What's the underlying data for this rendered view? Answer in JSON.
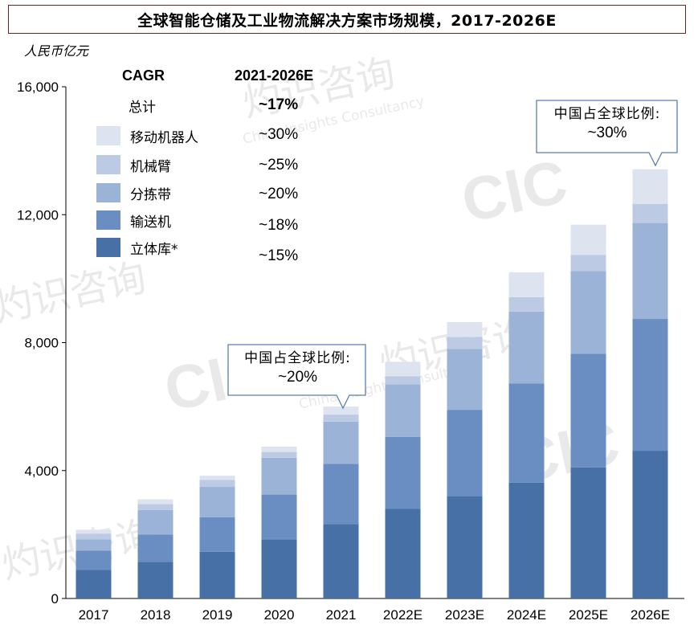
{
  "title": "全球智能仓储及工业物流解决方案市场规模，2017-2026E",
  "y_unit_label": "人民币亿元",
  "legend": {
    "header_left": "CAGR",
    "header_right": "2021-2026E",
    "total_label": "总计",
    "total_cagr": "~17%",
    "items": [
      {
        "name": "移动机器人",
        "cagr": "~30%",
        "color": "#dde3ef"
      },
      {
        "name": "机械臂",
        "cagr": "~25%",
        "color": "#bccbe3"
      },
      {
        "name": "分拣带",
        "cagr": "~20%",
        "color": "#9bb3d6"
      },
      {
        "name": "输送机",
        "cagr": "~18%",
        "color": "#6b8ec2"
      },
      {
        "name": "立体库*",
        "cagr": "~15%",
        "color": "#4670a6"
      }
    ]
  },
  "callouts": [
    {
      "line1": "中国占全球比例:",
      "line2": "~20%"
    },
    {
      "line1": "中国占全球比例:",
      "line2": "~30%"
    }
  ],
  "watermark": {
    "logo": "CIC",
    "cn": "灼识咨询",
    "en": "China Insights Consultancy"
  },
  "chart_data": {
    "type": "bar",
    "stacked": true,
    "categories": [
      "2017",
      "2018",
      "2019",
      "2020",
      "2021",
      "2022E",
      "2023E",
      "2024E",
      "2025E",
      "2026E"
    ],
    "ylim": [
      0,
      16000
    ],
    "yticks": [
      0,
      4000,
      8000,
      12000,
      16000
    ],
    "ytick_labels": [
      "0",
      "4,000",
      "8,000",
      "12,000",
      "16,000"
    ],
    "grid": false,
    "series": [
      {
        "name": "立体库*",
        "color": "#4670a6",
        "values": [
          900,
          1150,
          1460,
          1850,
          2330,
          2800,
          3200,
          3620,
          4100,
          4620
        ]
      },
      {
        "name": "输送机",
        "color": "#6b8ec2",
        "values": [
          600,
          850,
          1080,
          1400,
          1880,
          2250,
          2700,
          3100,
          3550,
          4120
        ]
      },
      {
        "name": "分拣带",
        "color": "#9bb3d6",
        "values": [
          350,
          770,
          950,
          1150,
          1320,
          1650,
          1900,
          2250,
          2590,
          3000
        ]
      },
      {
        "name": "机械臂",
        "color": "#bccbe3",
        "values": [
          180,
          180,
          220,
          180,
          220,
          250,
          380,
          450,
          500,
          600
        ]
      },
      {
        "name": "移动机器人",
        "color": "#dde3ef",
        "values": [
          120,
          150,
          130,
          170,
          250,
          450,
          460,
          780,
          950,
          1080
        ]
      }
    ]
  }
}
